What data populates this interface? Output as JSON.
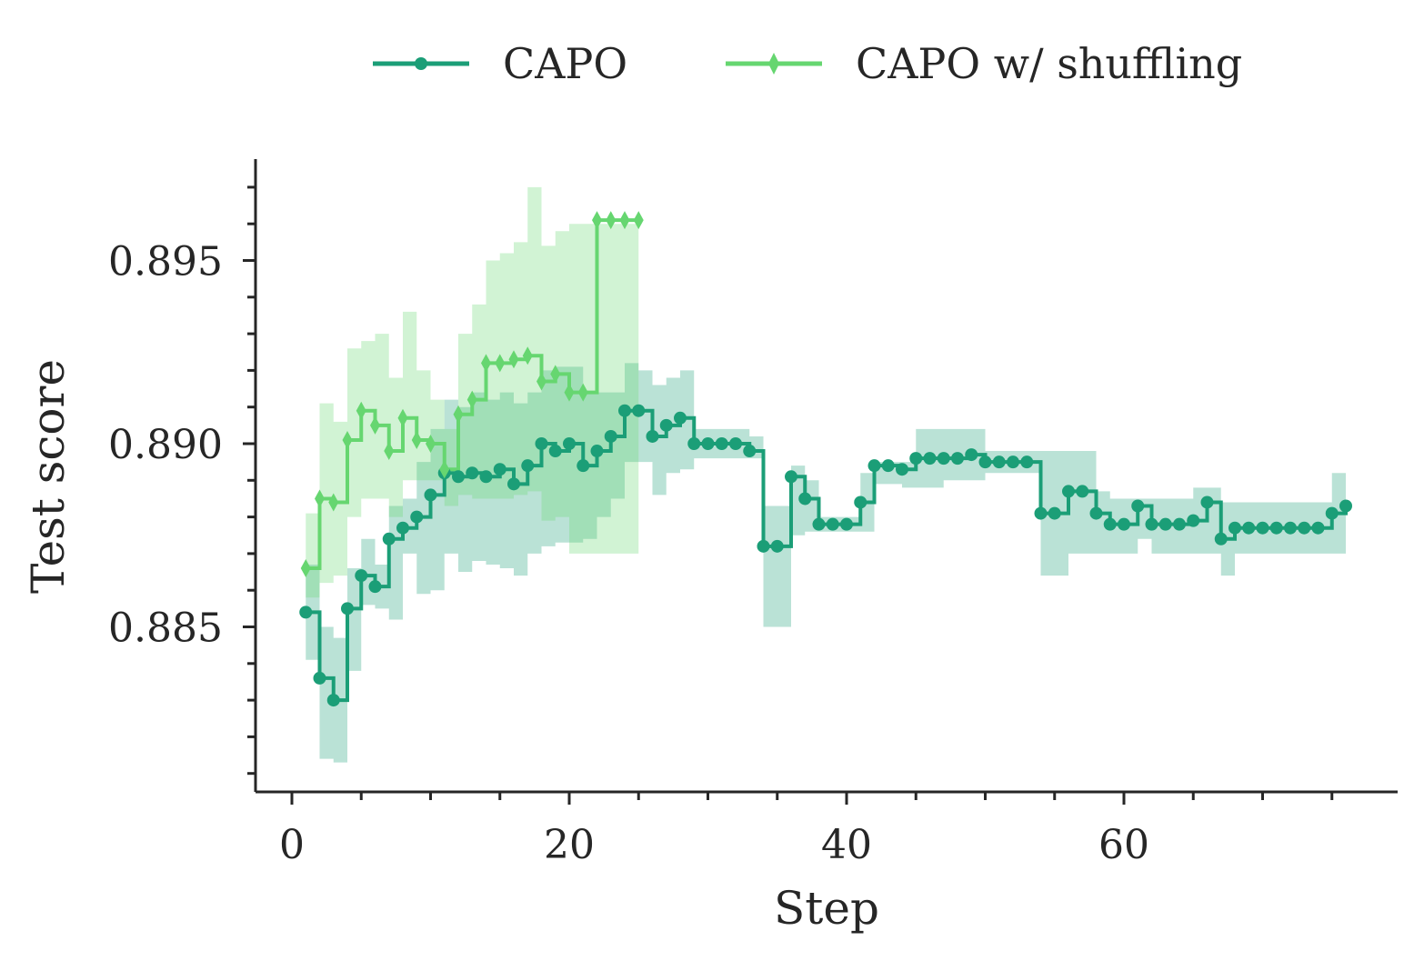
{
  "chart_data": {
    "type": "line",
    "step": true,
    "title": "",
    "xlabel": "Step",
    "ylabel": "Test score",
    "xlim": [
      -2.6,
      79.3
    ],
    "ylim": [
      0.8805,
      0.8978
    ],
    "xticks": [
      0,
      20,
      40,
      60
    ],
    "xtick_labels": [
      "0",
      "20",
      "40",
      "60"
    ],
    "yticks": [
      0.885,
      0.89,
      0.895
    ],
    "ytick_labels": [
      "0.885",
      "0.890",
      "0.895"
    ],
    "grid": false,
    "legend": {
      "position": "top-center",
      "ncol": 2
    },
    "series": [
      {
        "name": "CAPO",
        "color": "#1b9e77",
        "band_color": "#1b9e77",
        "marker": "circle",
        "x": [
          1,
          2,
          3,
          4,
          5,
          6,
          7,
          8,
          9,
          10,
          11,
          12,
          13,
          14,
          15,
          16,
          17,
          18,
          19,
          20,
          21,
          22,
          23,
          24,
          25,
          26,
          27,
          28,
          29,
          30,
          31,
          32,
          33,
          34,
          35,
          36,
          37,
          38,
          39,
          40,
          41,
          42,
          43,
          44,
          45,
          46,
          47,
          48,
          49,
          50,
          51,
          52,
          53,
          54,
          55,
          56,
          57,
          58,
          59,
          60,
          61,
          62,
          63,
          64,
          65,
          66,
          67,
          68,
          69,
          70,
          71,
          72,
          73,
          74,
          75,
          76
        ],
        "y": [
          0.8854,
          0.8836,
          0.883,
          0.8855,
          0.8864,
          0.8861,
          0.8874,
          0.8877,
          0.888,
          0.8886,
          0.8892,
          0.8891,
          0.8892,
          0.8891,
          0.8893,
          0.8889,
          0.8894,
          0.89,
          0.8898,
          0.89,
          0.8894,
          0.8898,
          0.8902,
          0.8909,
          0.8909,
          0.8902,
          0.8905,
          0.8907,
          0.89,
          0.89,
          0.89,
          0.89,
          0.8898,
          0.8872,
          0.8872,
          0.8891,
          0.8885,
          0.8878,
          0.8878,
          0.8878,
          0.8884,
          0.8894,
          0.8894,
          0.8893,
          0.8896,
          0.8896,
          0.8896,
          0.8896,
          0.8897,
          0.8895,
          0.8895,
          0.8895,
          0.8895,
          0.8881,
          0.8881,
          0.8887,
          0.8887,
          0.8881,
          0.8878,
          0.8878,
          0.8883,
          0.8878,
          0.8878,
          0.8878,
          0.8879,
          0.8884,
          0.8874,
          0.8877,
          0.8877,
          0.8877,
          0.8877,
          0.8877,
          0.8877,
          0.8877,
          0.8881,
          0.8883
        ],
        "lower": [
          0.8841,
          0.8814,
          0.8813,
          0.8838,
          0.8856,
          0.8855,
          0.8852,
          0.887,
          0.8859,
          0.886,
          0.887,
          0.8865,
          0.8868,
          0.8867,
          0.8866,
          0.8864,
          0.887,
          0.8872,
          0.8873,
          0.8873,
          0.8874,
          0.888,
          0.8885,
          0.8895,
          0.8895,
          0.8886,
          0.8892,
          0.8893,
          0.8896,
          0.8896,
          0.8896,
          0.8896,
          0.8896,
          0.885,
          0.885,
          0.8875,
          0.8876,
          0.8876,
          0.8876,
          0.8876,
          0.8876,
          0.8889,
          0.8889,
          0.8888,
          0.8888,
          0.8888,
          0.889,
          0.889,
          0.889,
          0.8892,
          0.8892,
          0.8892,
          0.8892,
          0.8864,
          0.8864,
          0.887,
          0.887,
          0.887,
          0.887,
          0.887,
          0.8874,
          0.887,
          0.887,
          0.887,
          0.887,
          0.887,
          0.8864,
          0.887,
          0.887,
          0.887,
          0.887,
          0.887,
          0.887,
          0.887,
          0.887,
          0.887
        ],
        "upper": [
          0.8867,
          0.885,
          0.8847,
          0.8866,
          0.8874,
          0.8867,
          0.8883,
          0.8885,
          0.8895,
          0.8904,
          0.8912,
          0.891,
          0.8914,
          0.8912,
          0.8914,
          0.8911,
          0.8914,
          0.892,
          0.8921,
          0.8921,
          0.8914,
          0.8914,
          0.8914,
          0.8922,
          0.892,
          0.8916,
          0.8918,
          0.892,
          0.8904,
          0.8904,
          0.8904,
          0.8904,
          0.8902,
          0.8883,
          0.8883,
          0.8894,
          0.889,
          0.888,
          0.888,
          0.888,
          0.8892,
          0.8895,
          0.8895,
          0.8895,
          0.8904,
          0.8904,
          0.8904,
          0.8904,
          0.8904,
          0.8898,
          0.8898,
          0.8898,
          0.8898,
          0.8898,
          0.8898,
          0.8898,
          0.8898,
          0.8887,
          0.8885,
          0.8885,
          0.8885,
          0.8885,
          0.8885,
          0.8885,
          0.8888,
          0.8888,
          0.8884,
          0.8884,
          0.8884,
          0.8884,
          0.8884,
          0.8884,
          0.8884,
          0.8884,
          0.8892,
          0.8892
        ]
      },
      {
        "name": "CAPO w/ shuffling",
        "color": "#66d670",
        "band_color": "#66d670",
        "marker": "thin_diamond",
        "x": [
          1,
          2,
          3,
          4,
          5,
          6,
          7,
          8,
          9,
          10,
          11,
          12,
          13,
          14,
          15,
          16,
          17,
          18,
          19,
          20,
          21,
          22,
          23,
          24,
          25
        ],
        "y": [
          0.8866,
          0.8885,
          0.8884,
          0.8901,
          0.8909,
          0.8905,
          0.8898,
          0.8907,
          0.8901,
          0.89,
          0.8893,
          0.8908,
          0.8912,
          0.8922,
          0.8922,
          0.8923,
          0.8924,
          0.8917,
          0.8919,
          0.8914,
          0.8914,
          0.8961,
          0.8961,
          0.8961,
          0.8961
        ],
        "lower": [
          0.8858,
          0.8862,
          0.8864,
          0.888,
          0.8885,
          0.8885,
          0.888,
          0.889,
          0.889,
          0.889,
          0.8883,
          0.8886,
          0.8885,
          0.8885,
          0.8885,
          0.8886,
          0.8887,
          0.8879,
          0.888,
          0.887,
          0.887,
          0.887,
          0.887,
          0.887,
          0.887
        ],
        "upper": [
          0.8881,
          0.8911,
          0.8906,
          0.8926,
          0.8928,
          0.893,
          0.8918,
          0.8936,
          0.892,
          0.8912,
          0.8904,
          0.893,
          0.8938,
          0.895,
          0.8952,
          0.8955,
          0.897,
          0.8954,
          0.8958,
          0.896,
          0.896,
          0.896,
          0.896,
          0.896,
          0.896
        ]
      }
    ]
  }
}
